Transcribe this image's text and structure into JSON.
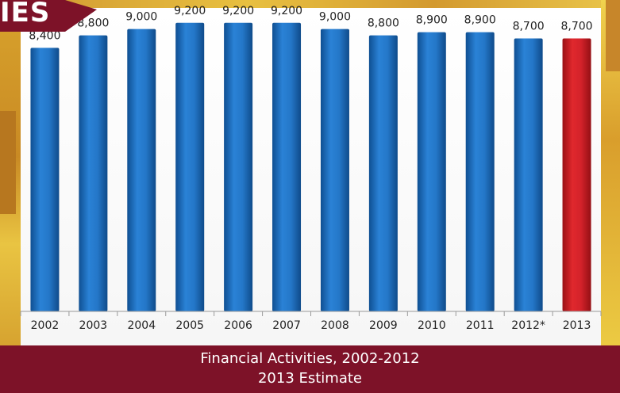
{
  "banner": {
    "text": "IES"
  },
  "footer": {
    "line1": "Financial Activities, 2002-2012",
    "line2": "2013 Estimate"
  },
  "chart_data": {
    "type": "bar",
    "categories": [
      "2002",
      "2003",
      "2004",
      "2005",
      "2006",
      "2007",
      "2008",
      "2009",
      "2010",
      "2011",
      "2012*",
      "2013"
    ],
    "values": [
      8400,
      8800,
      9000,
      9200,
      9200,
      9200,
      9000,
      8800,
      8900,
      8900,
      8700,
      8700
    ],
    "value_labels": [
      "8,400",
      "8,800",
      "9,000",
      "9,200",
      "9,200",
      "9,200",
      "9,000",
      "8,800",
      "8,900",
      "8,900",
      "8,700",
      "8,700"
    ],
    "title": "",
    "xlabel": "",
    "ylabel": "",
    "ylim": [
      0,
      9800
    ],
    "grid": false,
    "bar_color": "#1e6fc0",
    "highlight_color": "#cc1f24",
    "highlight_category": "2013"
  }
}
